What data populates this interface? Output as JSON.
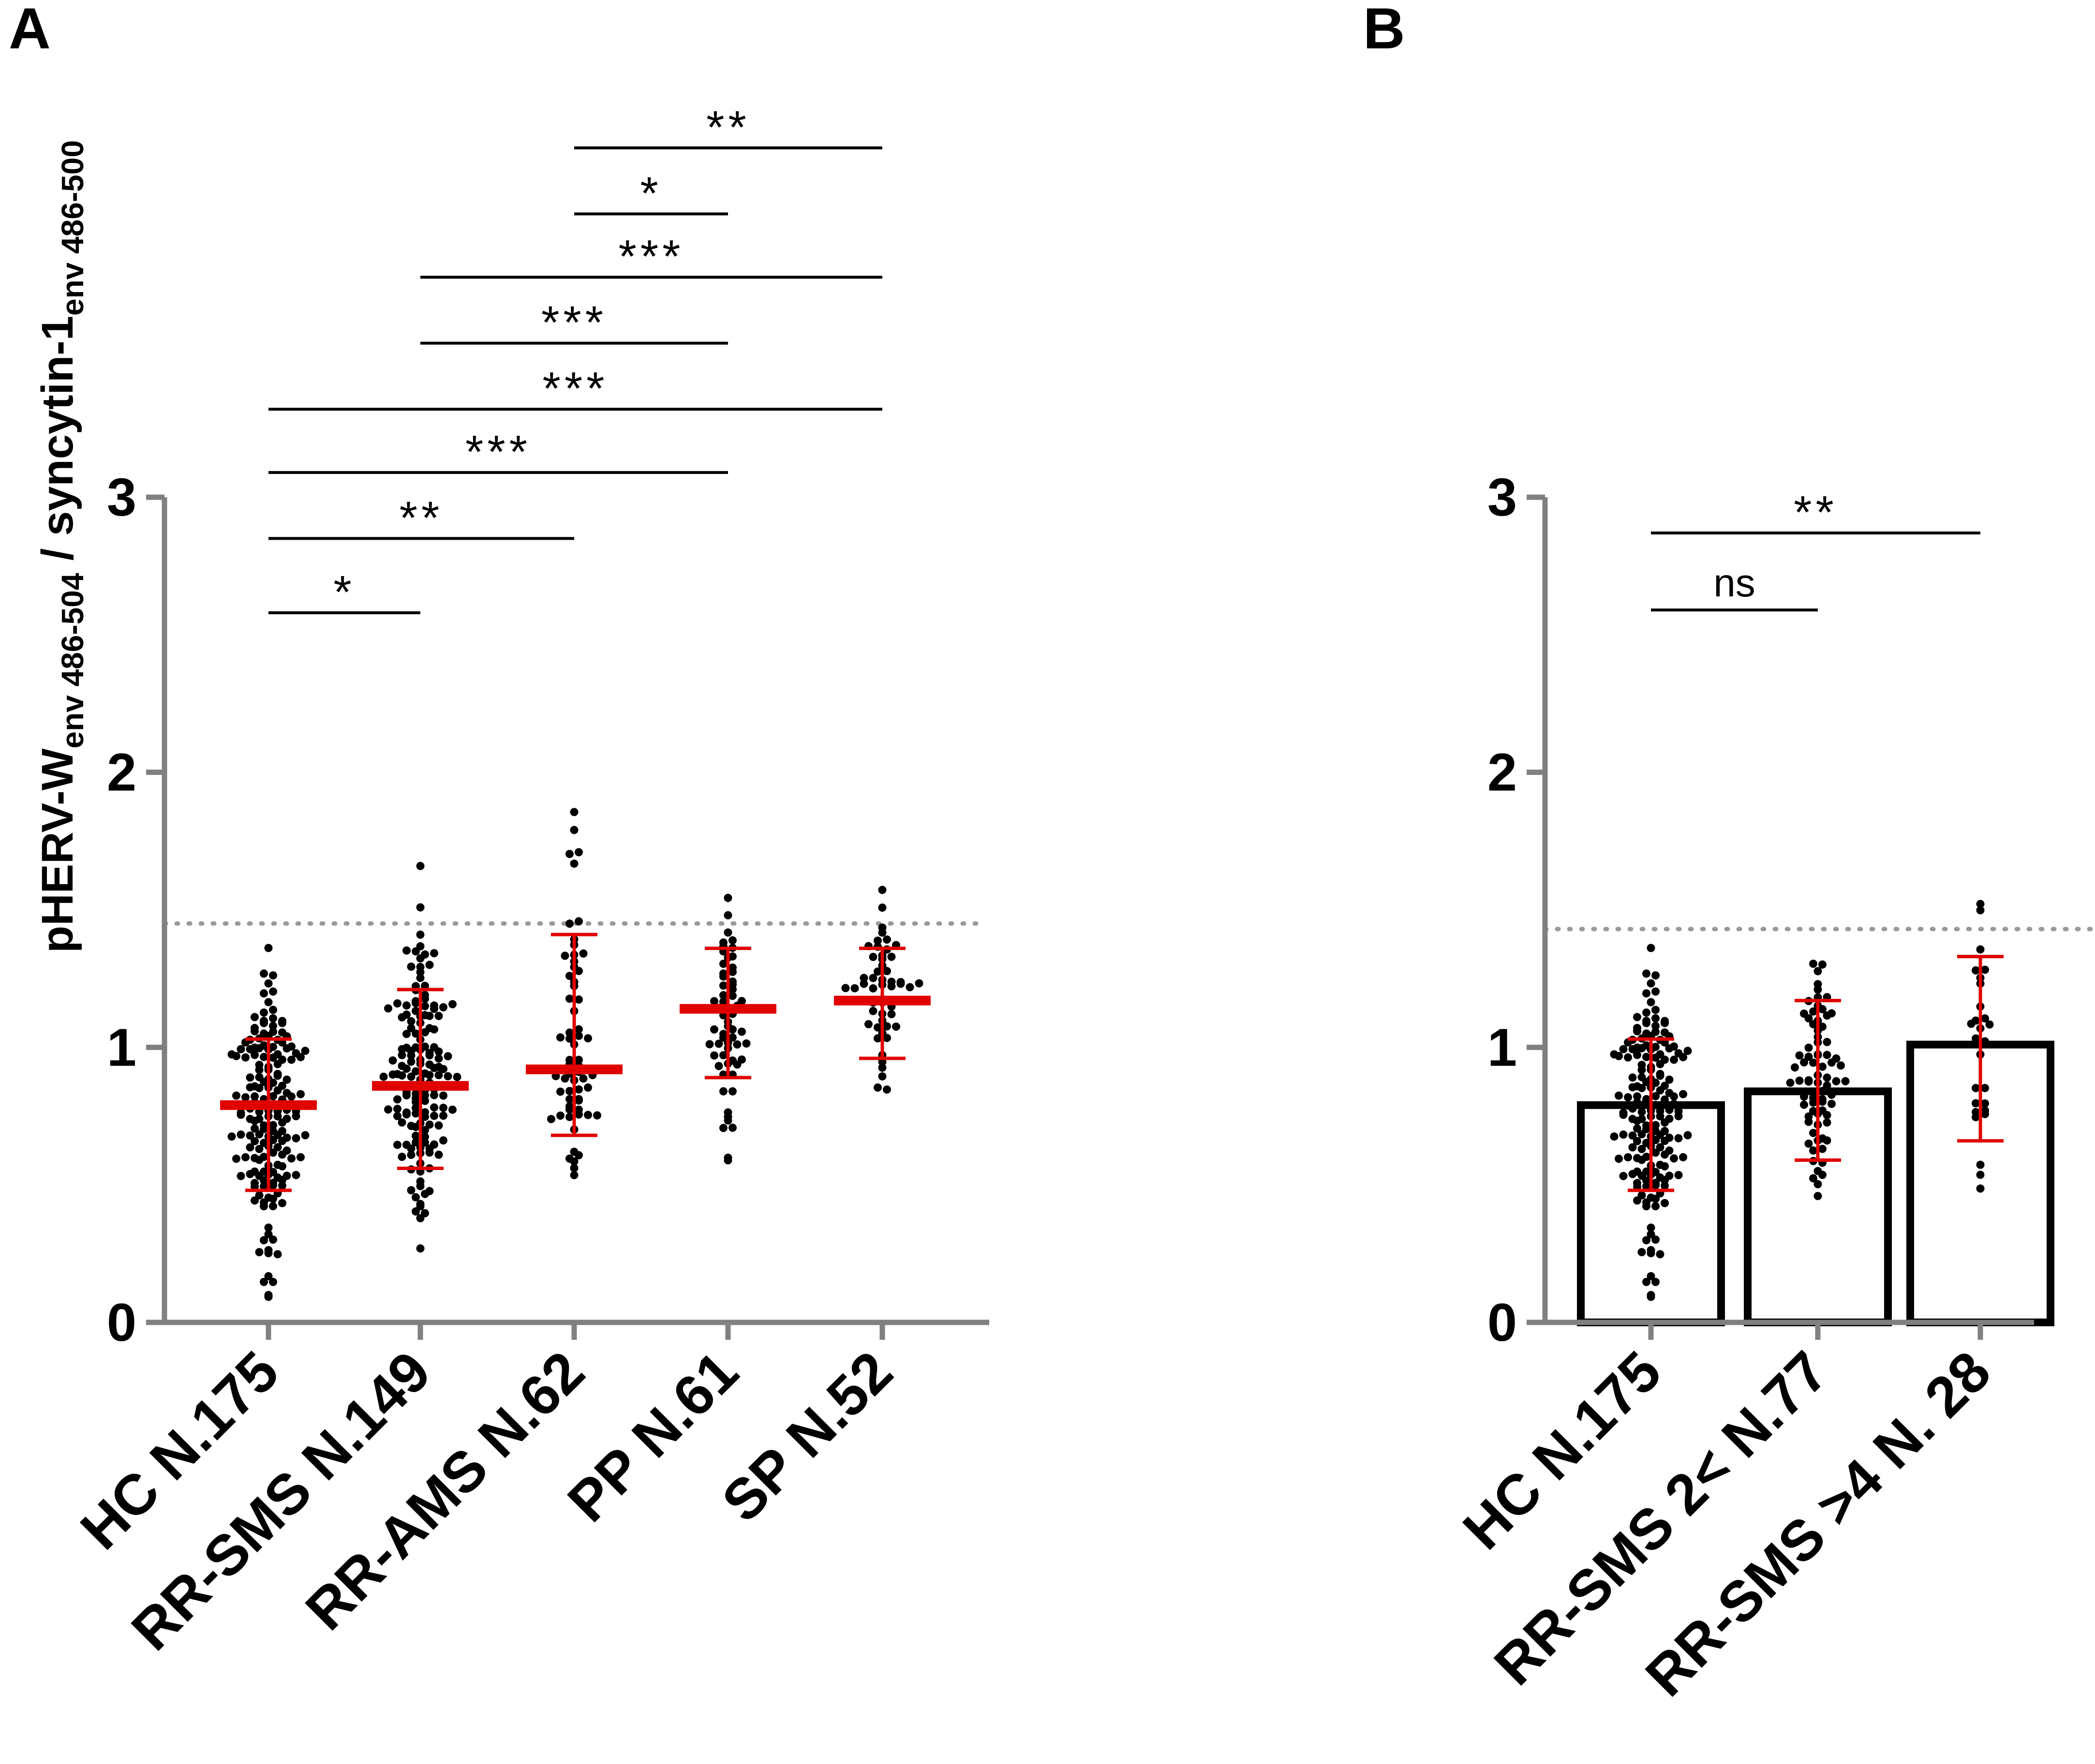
{
  "colors": {
    "axis": "#808080",
    "points": "#000000",
    "error": "#e00000",
    "threshold": "#999999",
    "bar": "#000000"
  },
  "chart_data": [
    {
      "panel": "A",
      "type": "scatter",
      "ylabel_parts": [
        "pHERV-W",
        "env 486-504",
        " / syncytin-1",
        "env 486-500"
      ],
      "ylim": [
        0,
        3
      ],
      "yticks": [
        0,
        1,
        2,
        3
      ],
      "threshold": 1.45,
      "groups": [
        {
          "label": "HC N.175",
          "n": 175,
          "median": 0.79,
          "q1": 0.48,
          "q3": 1.03
        },
        {
          "label": "RR-SMS N.149",
          "n": 149,
          "median": 0.86,
          "q1": 0.56,
          "q3": 1.21
        },
        {
          "label": "RR-AMS N.62",
          "n": 62,
          "median": 0.92,
          "q1": 0.68,
          "q3": 1.41
        },
        {
          "label": "PP N.61",
          "n": 61,
          "median": 1.14,
          "q1": 0.89,
          "q3": 1.36
        },
        {
          "label": "SP N.52",
          "n": 52,
          "median": 1.17,
          "q1": 0.96,
          "q3": 1.36
        }
      ],
      "comparisons": [
        {
          "from": 0,
          "to": 4,
          "label": "***",
          "y": 3.32
        },
        {
          "from": 0,
          "to": 3,
          "label": "***",
          "y": 3.09
        },
        {
          "from": 0,
          "to": 2,
          "label": "**",
          "y": 2.85
        },
        {
          "from": 0,
          "to": 1,
          "label": "*",
          "y": 2.58
        },
        {
          "from": 1,
          "to": 4,
          "label": "***",
          "y": 3.8
        },
        {
          "from": 1,
          "to": 3,
          "label": "***",
          "y": 3.56
        },
        {
          "from": 2,
          "to": 3,
          "label": "*",
          "y": 4.03
        },
        {
          "from": 2,
          "to": 4,
          "label": "**",
          "y": 4.27
        }
      ]
    },
    {
      "panel": "B",
      "type": "bar",
      "ylim": [
        0,
        3
      ],
      "yticks": [
        0,
        1,
        2,
        3
      ],
      "threshold": 1.43,
      "groups": [
        {
          "label": "HC N.175",
          "n": 175,
          "value": 0.79,
          "q1": 0.48,
          "q3": 1.03
        },
        {
          "label": "RR-SMS 2< N.77",
          "n": 77,
          "value": 0.84,
          "q1": 0.59,
          "q3": 1.17
        },
        {
          "label": "RR-SMS >4 N. 28",
          "n": 28,
          "value": 1.01,
          "q1": 0.66,
          "q3": 1.33
        }
      ],
      "comparisons": [
        {
          "from": 0,
          "to": 2,
          "label": "**",
          "y": 2.87
        },
        {
          "from": 0,
          "to": 1,
          "label": "ns",
          "y": 2.59
        }
      ]
    }
  ]
}
